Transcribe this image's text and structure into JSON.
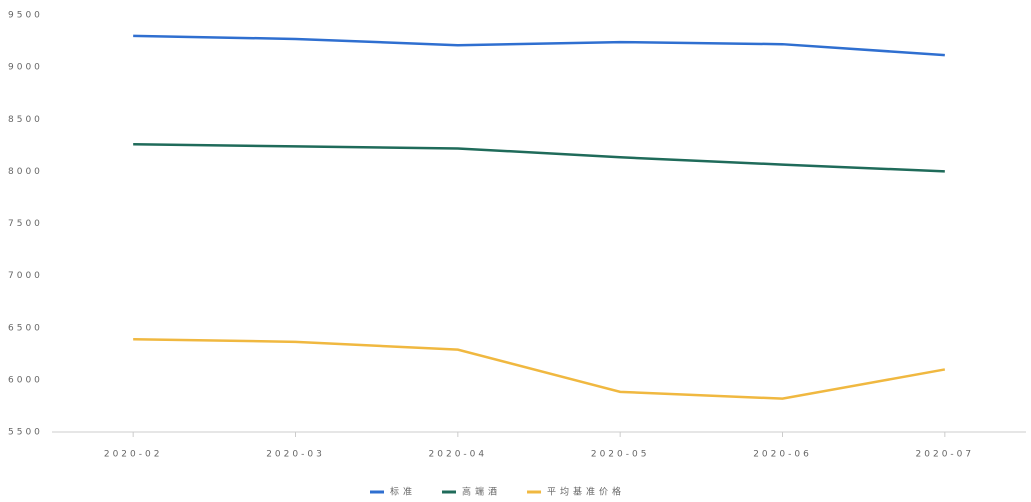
{
  "chart_data": {
    "type": "line",
    "categories": [
      "2020-02",
      "2020-03",
      "2020-04",
      "2020-05",
      "2020-06",
      "2020-07"
    ],
    "series": [
      {
        "name": "标准",
        "color": "#2f6fd0",
        "values": [
          9300,
          9270,
          9210,
          9240,
          9220,
          9115
        ]
      },
      {
        "name": "高端酒",
        "color": "#1f6b5a",
        "values": [
          8260,
          8240,
          8220,
          8135,
          8065,
          8000
        ]
      },
      {
        "name": "平均基准价格",
        "color": "#f0b840",
        "values": [
          6390,
          6365,
          6290,
          5885,
          5820,
          6100
        ]
      }
    ],
    "ylim": [
      5500,
      9500
    ],
    "yticks": [
      5500,
      6000,
      6500,
      7000,
      7500,
      8000,
      8500,
      9000,
      9500
    ],
    "grid": false,
    "legend": "bottom"
  }
}
